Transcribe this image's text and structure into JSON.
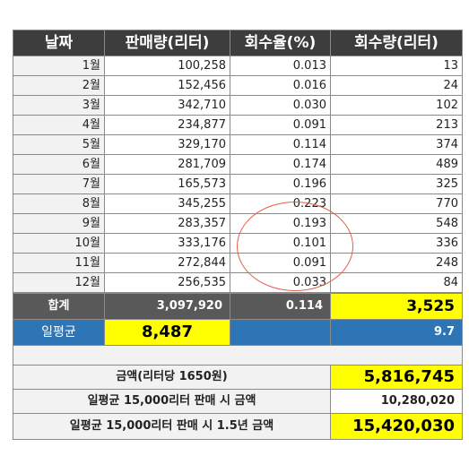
{
  "header": [
    "날짜",
    "판매량(리터)",
    "회수율(%)",
    "회수량(리터)"
  ],
  "rows": [
    {
      "month": "1월",
      "sales": "100,258",
      "rate": "0.013",
      "recovered": "13"
    },
    {
      "month": "2월",
      "sales": "152,456",
      "rate": "0.016",
      "recovered": "24"
    },
    {
      "month": "3월",
      "sales": "342,710",
      "rate": "0.030",
      "recovered": "102"
    },
    {
      "month": "4월",
      "sales": "234,877",
      "rate": "0.091",
      "recovered": "213"
    },
    {
      "month": "5월",
      "sales": "329,170",
      "rate": "0.114",
      "recovered": "374"
    },
    {
      "month": "6월",
      "sales": "281,709",
      "rate": "0.174",
      "recovered": "489"
    },
    {
      "month": "7월",
      "sales": "165,573",
      "rate": "0.196",
      "recovered": "325"
    },
    {
      "month": "8월",
      "sales": "345,255",
      "rate": "0.223",
      "recovered": "770"
    },
    {
      "month": "9월",
      "sales": "283,357",
      "rate": "0.193",
      "recovered": "548"
    },
    {
      "month": "10월",
      "sales": "333,176",
      "rate": "0.101",
      "recovered": "336"
    },
    {
      "month": "11월",
      "sales": "272,844",
      "rate": "0.091",
      "recovered": "248"
    },
    {
      "month": "12월",
      "sales": "256,535",
      "rate": "0.033",
      "recovered": "84"
    }
  ],
  "total": {
    "label": "합계",
    "sales": "3,097,920",
    "rate": "0.114",
    "recovered": "3,525"
  },
  "daily_avg": {
    "label": "일평균",
    "sales": "8,487",
    "recovered": "9.7"
  },
  "amount": {
    "label": "금액(리터당 1650원)",
    "value": "5,816,745"
  },
  "amount_15000": {
    "label": "일평균 15,000리터 판매 시 금액",
    "value": "10,280,020"
  },
  "amount_15000_15y": {
    "label": "일평균 15,000리터 판매 시 1.5년 금액",
    "value": "15,420,030"
  },
  "colors": {
    "header_bg": "#3d3d3d",
    "total_bg": "#595959",
    "avg_bg": "#2e75b6",
    "highlight": "#ffff00",
    "circle": "#e0604a"
  }
}
